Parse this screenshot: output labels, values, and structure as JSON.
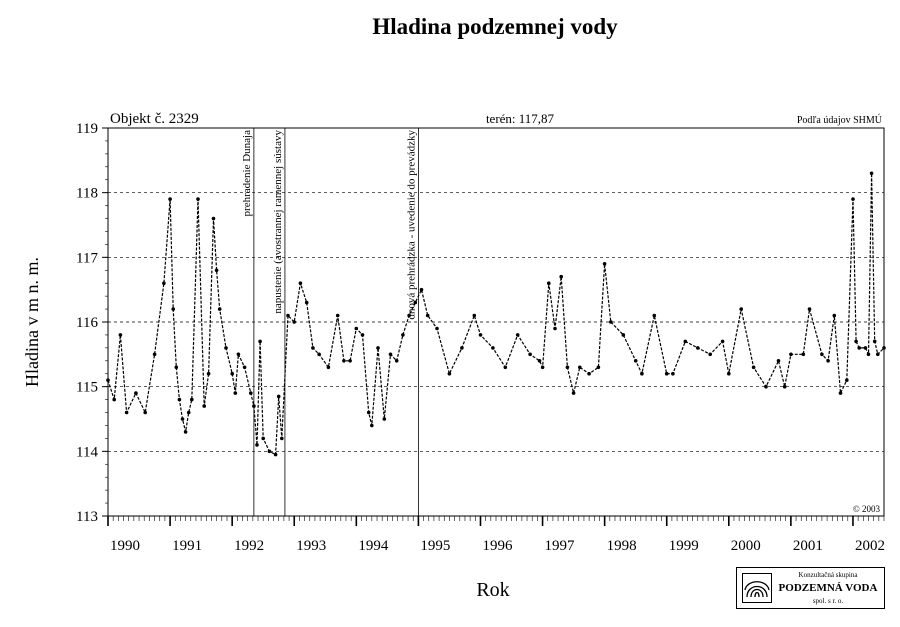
{
  "chart_data": {
    "type": "line",
    "title": "Hladina podzemnej vody",
    "object_label": "Objekt č. 2329",
    "terrain_label": "terén: 117,87",
    "source_label": "Podľa údajov SHMÚ",
    "copyright": "© 2003",
    "xlabel": "Rok",
    "ylabel": "Hladina v m n. m.",
    "xlim": [
      1990,
      2002.5
    ],
    "ylim": [
      113,
      119
    ],
    "x_ticks": [
      "1990",
      "1991",
      "1992",
      "1993",
      "1994",
      "1995",
      "1996",
      "1997",
      "1998",
      "1999",
      "2000",
      "2001",
      "2002"
    ],
    "y_ticks": [
      "113",
      "114",
      "115",
      "116",
      "117",
      "118",
      "119"
    ],
    "grid": "horizontal-dashed",
    "events": [
      {
        "x": 1992.35,
        "label": "prehradenie Dunaja"
      },
      {
        "x": 1992.85,
        "label": "napustenie (avostrannej ramennej sústavy"
      },
      {
        "x": 1995.0,
        "label": "dnová prehrádzka - uvedenie do prevádzky"
      }
    ],
    "series": [
      {
        "x": [
          1990.0,
          1990.1,
          1990.2,
          1990.3,
          1990.45,
          1990.6,
          1990.75,
          1990.9,
          1991.0,
          1991.05,
          1991.1,
          1991.15,
          1991.2,
          1991.25,
          1991.3,
          1991.35,
          1991.45,
          1991.55,
          1991.62,
          1991.7,
          1991.75,
          1991.8,
          1991.9,
          1992.0,
          1992.05,
          1992.1,
          1992.2,
          1992.3,
          1992.35,
          1992.4,
          1992.45,
          1992.5,
          1992.6,
          1992.7,
          1992.75,
          1992.8,
          1992.9,
          1993.0,
          1993.1,
          1993.2,
          1993.3,
          1993.4,
          1993.55,
          1993.7,
          1993.8,
          1993.9,
          1994.0,
          1994.1,
          1994.2,
          1994.25,
          1994.35,
          1994.45,
          1994.55,
          1994.65,
          1994.75,
          1994.85,
          1994.95,
          1995.05,
          1995.15,
          1995.3,
          1995.5,
          1995.7,
          1995.9,
          1996.0,
          1996.2,
          1996.4,
          1996.6,
          1996.8,
          1996.95,
          1997.0,
          1997.1,
          1997.2,
          1997.3,
          1997.4,
          1997.5,
          1997.6,
          1997.75,
          1997.9,
          1998.0,
          1998.1,
          1998.3,
          1998.5,
          1998.6,
          1998.8,
          1999.0,
          1999.1,
          1999.3,
          1999.5,
          1999.7,
          1999.9,
          2000.0,
          2000.2,
          2000.4,
          2000.6,
          2000.8,
          2000.9,
          2001.0,
          2001.2,
          2001.3,
          2001.5,
          2001.6,
          2001.7,
          2001.8,
          2001.9,
          2002.0,
          2002.05,
          2002.1,
          2002.2,
          2002.25,
          2002.3,
          2002.35,
          2002.4,
          2002.5
        ],
        "y": [
          115.1,
          114.8,
          115.8,
          114.6,
          114.9,
          114.6,
          115.5,
          116.6,
          117.9,
          116.2,
          115.3,
          114.8,
          114.5,
          114.3,
          114.6,
          114.8,
          117.9,
          114.7,
          115.2,
          117.6,
          116.8,
          116.2,
          115.6,
          115.2,
          114.9,
          115.5,
          115.3,
          114.9,
          114.7,
          114.1,
          115.7,
          114.2,
          114.0,
          113.95,
          114.85,
          114.2,
          116.1,
          116.0,
          116.6,
          116.3,
          115.6,
          115.5,
          115.3,
          116.1,
          115.4,
          115.4,
          115.9,
          115.8,
          114.6,
          114.4,
          115.6,
          114.5,
          115.5,
          115.4,
          115.8,
          116.1,
          116.3,
          116.5,
          116.1,
          115.9,
          115.2,
          115.6,
          116.1,
          115.8,
          115.6,
          115.3,
          115.8,
          115.5,
          115.4,
          115.3,
          116.6,
          115.9,
          116.7,
          115.3,
          114.9,
          115.3,
          115.2,
          115.3,
          116.9,
          116.0,
          115.8,
          115.4,
          115.2,
          116.1,
          115.2,
          115.2,
          115.7,
          115.6,
          115.5,
          115.7,
          115.2,
          116.2,
          115.3,
          115.0,
          115.4,
          115.0,
          115.5,
          115.5,
          116.2,
          115.5,
          115.4,
          116.1,
          114.9,
          115.1,
          117.9,
          115.7,
          115.6,
          115.6,
          115.5,
          118.3,
          115.7,
          115.5,
          115.6
        ]
      }
    ]
  },
  "logo": {
    "line1": "Konzultačná skupina",
    "line2": "PODZEMNÁ VODA",
    "line3": "spol. s r. o."
  }
}
